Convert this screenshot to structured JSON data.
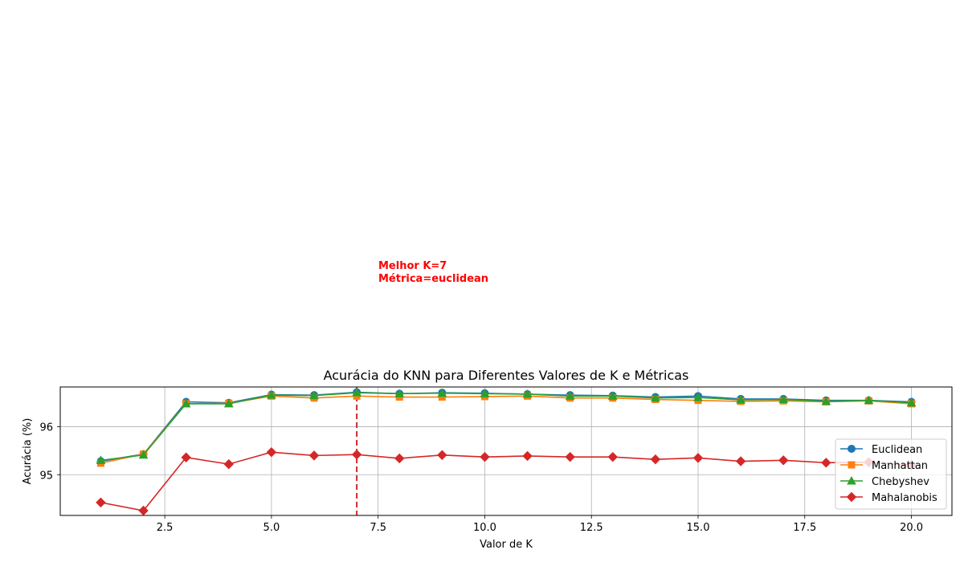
{
  "chart_data": {
    "type": "line",
    "title": "Acurácia do KNN para Diferentes Valores de K e Métricas",
    "xlabel": "Valor de K",
    "ylabel": "Acurácia (%)",
    "xlim": [
      0.05,
      20.95
    ],
    "ylim": [
      94.15,
      96.83
    ],
    "xticks": [
      2.5,
      5.0,
      7.5,
      10.0,
      12.5,
      15.0,
      17.5,
      20.0
    ],
    "xtick_labels": [
      "2.5",
      "5.0",
      "7.5",
      "10.0",
      "12.5",
      "15.0",
      "17.5",
      "20.0"
    ],
    "yticks": [
      95,
      96
    ],
    "ytick_labels": [
      "95",
      "96"
    ],
    "grid": true,
    "legend_position": "lower-right",
    "x": [
      1,
      2,
      3,
      4,
      5,
      6,
      7,
      8,
      9,
      10,
      11,
      12,
      13,
      14,
      15,
      16,
      17,
      18,
      19,
      20
    ],
    "series": [
      {
        "name": "Euclidean",
        "color": "#1f77b4",
        "marker": "circle",
        "values": [
          95.28,
          95.43,
          96.52,
          96.5,
          96.67,
          96.66,
          96.72,
          96.69,
          96.71,
          96.7,
          96.68,
          96.66,
          96.65,
          96.62,
          96.64,
          96.58,
          96.58,
          96.55,
          96.55,
          96.52
        ]
      },
      {
        "name": "Manhattan",
        "color": "#ff7f0e",
        "marker": "square",
        "values": [
          95.24,
          95.43,
          96.48,
          96.49,
          96.64,
          96.6,
          96.64,
          96.62,
          96.62,
          96.63,
          96.64,
          96.6,
          96.6,
          96.57,
          96.55,
          96.53,
          96.54,
          96.52,
          96.54,
          96.48
        ]
      },
      {
        "name": "Chebyshev",
        "color": "#2ca02c",
        "marker": "triangle",
        "values": [
          95.3,
          95.41,
          96.48,
          96.48,
          96.66,
          96.65,
          96.71,
          96.69,
          96.7,
          96.69,
          96.68,
          96.64,
          96.64,
          96.6,
          96.61,
          96.56,
          96.57,
          96.53,
          96.55,
          96.5
        ]
      },
      {
        "name": "Mahalanobis",
        "color": "#d62728",
        "marker": "diamond",
        "values": [
          94.42,
          94.25,
          95.36,
          95.22,
          95.47,
          95.4,
          95.42,
          95.34,
          95.41,
          95.37,
          95.39,
          95.37,
          95.37,
          95.32,
          95.35,
          95.28,
          95.3,
          95.25,
          95.26,
          95.2
        ]
      }
    ],
    "reference_line": {
      "x": 7,
      "color": "#d62728",
      "style": "dashed"
    },
    "annotation": {
      "lines": [
        "Melhor K=7",
        "Métrica=euclidean"
      ],
      "color": "#ff0000"
    }
  }
}
